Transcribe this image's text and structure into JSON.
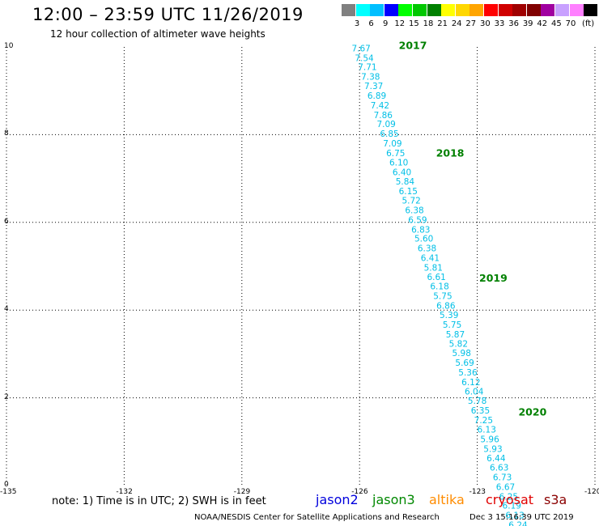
{
  "header": {
    "title": "12:00 – 23:59 UTC 11/26/2019",
    "subtitle": "12 hour collection of altimeter wave heights"
  },
  "colorbar": {
    "unit": "(ft)",
    "labels": [
      "3",
      "6",
      "9",
      "12",
      "15",
      "18",
      "21",
      "24",
      "27",
      "30",
      "33",
      "36",
      "39",
      "42",
      "45",
      "70"
    ],
    "colors": [
      "#808080",
      "#00ffff",
      "#00bfff",
      "#0000ff",
      "#00ff00",
      "#00c800",
      "#008000",
      "#ffff00",
      "#ffd700",
      "#ffa500",
      "#ff0000",
      "#d00000",
      "#a00000",
      "#800000",
      "#a000a0",
      "#c8a0ff",
      "#ff80ff",
      "#000000"
    ]
  },
  "chart_data": {
    "type": "scatter",
    "xlim": [
      -135,
      -120
    ],
    "ylim": [
      0,
      10
    ],
    "x_ticks": [
      "-135",
      "-132",
      "-129",
      "-126",
      "-123",
      "-120"
    ],
    "y_ticks": [
      "0",
      "2",
      "4",
      "6",
      "8",
      "10"
    ],
    "grid": true,
    "points_color": "#00bfe6",
    "points": [
      {
        "x": -125.96,
        "y": 9.9,
        "label": "7.67"
      },
      {
        "x": -125.88,
        "y": 9.68,
        "label": "7.54"
      },
      {
        "x": -125.8,
        "y": 9.47,
        "label": "7.71"
      },
      {
        "x": -125.72,
        "y": 9.25,
        "label": "7.38"
      },
      {
        "x": -125.64,
        "y": 9.04,
        "label": "7.37"
      },
      {
        "x": -125.56,
        "y": 8.82,
        "label": "6.89"
      },
      {
        "x": -125.48,
        "y": 8.6,
        "label": "7.42"
      },
      {
        "x": -125.4,
        "y": 8.38,
        "label": "7.86"
      },
      {
        "x": -125.32,
        "y": 8.17,
        "label": "7.09"
      },
      {
        "x": -125.24,
        "y": 7.95,
        "label": "6.85"
      },
      {
        "x": -125.16,
        "y": 7.73,
        "label": "7.09"
      },
      {
        "x": -125.08,
        "y": 7.51,
        "label": "6.75"
      },
      {
        "x": -125.0,
        "y": 7.3,
        "label": "6.10"
      },
      {
        "x": -124.92,
        "y": 7.08,
        "label": "6.40"
      },
      {
        "x": -124.84,
        "y": 6.86,
        "label": "5.84"
      },
      {
        "x": -124.76,
        "y": 6.64,
        "label": "6.15"
      },
      {
        "x": -124.68,
        "y": 6.43,
        "label": "5.72"
      },
      {
        "x": -124.6,
        "y": 6.21,
        "label": "6.38"
      },
      {
        "x": -124.52,
        "y": 5.99,
        "label": "6.59"
      },
      {
        "x": -124.44,
        "y": 5.77,
        "label": "6.83"
      },
      {
        "x": -124.36,
        "y": 5.56,
        "label": "5.60"
      },
      {
        "x": -124.28,
        "y": 5.34,
        "label": "6.38"
      },
      {
        "x": -124.2,
        "y": 5.12,
        "label": "6.41"
      },
      {
        "x": -124.12,
        "y": 4.9,
        "label": "5.81"
      },
      {
        "x": -124.04,
        "y": 4.69,
        "label": "6.61"
      },
      {
        "x": -123.96,
        "y": 4.47,
        "label": "6.18"
      },
      {
        "x": -123.88,
        "y": 4.25,
        "label": "5.75"
      },
      {
        "x": -123.8,
        "y": 4.03,
        "label": "6.86"
      },
      {
        "x": -123.72,
        "y": 3.82,
        "label": "5.39"
      },
      {
        "x": -123.64,
        "y": 3.6,
        "label": "5.75"
      },
      {
        "x": -123.56,
        "y": 3.38,
        "label": "5.87"
      },
      {
        "x": -123.48,
        "y": 3.16,
        "label": "5.82"
      },
      {
        "x": -123.4,
        "y": 2.95,
        "label": "5.98"
      },
      {
        "x": -123.32,
        "y": 2.73,
        "label": "5.69"
      },
      {
        "x": -123.24,
        "y": 2.51,
        "label": "5.36"
      },
      {
        "x": -123.16,
        "y": 2.29,
        "label": "6.12"
      },
      {
        "x": -123.08,
        "y": 2.08,
        "label": "6.04"
      },
      {
        "x": -123.0,
        "y": 1.86,
        "label": "5.78"
      },
      {
        "x": -122.92,
        "y": 1.64,
        "label": "6.35"
      },
      {
        "x": -122.84,
        "y": 1.42,
        "label": "7.25"
      },
      {
        "x": -122.76,
        "y": 1.21,
        "label": "6.13"
      },
      {
        "x": -122.68,
        "y": 0.99,
        "label": "5.96"
      },
      {
        "x": -122.6,
        "y": 0.77,
        "label": "5.93"
      },
      {
        "x": -122.52,
        "y": 0.55,
        "label": "6.44"
      },
      {
        "x": -122.44,
        "y": 0.34,
        "label": "6.63"
      },
      {
        "x": -122.36,
        "y": 0.12,
        "label": "6.73"
      },
      {
        "x": -122.28,
        "y": -0.1,
        "label": "6.67"
      },
      {
        "x": -122.2,
        "y": -0.32,
        "label": "6.25"
      },
      {
        "x": -122.12,
        "y": -0.53,
        "label": "6.19"
      },
      {
        "x": -122.04,
        "y": -0.75,
        "label": "6.13"
      },
      {
        "x": -121.96,
        "y": -0.97,
        "label": "6.24"
      }
    ],
    "time_labels": [
      {
        "x": -125.0,
        "y": 9.95,
        "text": "2017"
      },
      {
        "x": -124.05,
        "y": 7.5,
        "text": "2018"
      },
      {
        "x": -122.95,
        "y": 4.65,
        "text": "2019"
      },
      {
        "x": -121.95,
        "y": 1.6,
        "text": "2020"
      }
    ]
  },
  "footer": {
    "note": "note: 1) Time is in UTC; 2) SWH is in feet",
    "satellites": [
      {
        "name": "jason2",
        "color": "#0000dd"
      },
      {
        "name": "jason3",
        "color": "#008800"
      },
      {
        "name": "altika",
        "color": "#ff8c00"
      },
      {
        "name": "cryosat",
        "color": "#e00000"
      },
      {
        "name": "s3a",
        "color": "#8b0000"
      }
    ],
    "credit": "NOAA/NESDIS Center for Satellite Applications and Research",
    "timestamp": "Dec  3 15:16:39 UTC 2019"
  }
}
